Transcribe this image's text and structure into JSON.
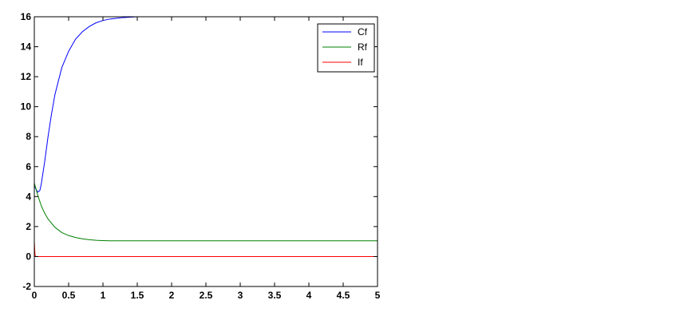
{
  "chart_data": {
    "type": "line",
    "title": "",
    "xlabel": "",
    "ylabel": "",
    "xlim": [
      0,
      5
    ],
    "ylim": [
      -2,
      16
    ],
    "xticks": [
      0,
      0.5,
      1,
      1.5,
      2,
      2.5,
      3,
      3.5,
      4,
      4.5,
      5
    ],
    "xtick_labels": [
      "0",
      "0.5",
      "1",
      "1.5",
      "2",
      "2.5",
      "3",
      "3.5",
      "4",
      "4.5",
      "5"
    ],
    "yticks": [
      -2,
      0,
      2,
      4,
      6,
      8,
      10,
      12,
      14,
      16
    ],
    "ytick_labels": [
      "-2",
      "0",
      "2",
      "4",
      "6",
      "8",
      "10",
      "12",
      "14",
      "16"
    ],
    "grid": false,
    "legend_position": "top-right",
    "series": [
      {
        "name": "Cf",
        "color": "#0000ff",
        "x": [
          0,
          0.03,
          0.05,
          0.08,
          0.1,
          0.15,
          0.2,
          0.25,
          0.3,
          0.4,
          0.5,
          0.6,
          0.7,
          0.8,
          0.9,
          1.0,
          1.1,
          1.2,
          1.3,
          1.4,
          1.5,
          2.0,
          3.0,
          4.0,
          5.0
        ],
        "y": [
          4.7,
          4.45,
          4.3,
          4.4,
          4.8,
          6.3,
          8.0,
          9.5,
          10.8,
          12.6,
          13.7,
          14.5,
          15.0,
          15.35,
          15.6,
          15.75,
          15.85,
          15.9,
          15.95,
          15.97,
          16.0,
          16.0,
          16.0,
          16.0,
          16.0
        ]
      },
      {
        "name": "Rf",
        "color": "#008000",
        "x": [
          0,
          0.05,
          0.1,
          0.15,
          0.2,
          0.3,
          0.4,
          0.5,
          0.6,
          0.7,
          0.8,
          0.9,
          1.0,
          1.1,
          1.2,
          1.5,
          2.0,
          3.0,
          4.0,
          5.0
        ],
        "y": [
          4.9,
          4.1,
          3.4,
          2.9,
          2.5,
          1.95,
          1.6,
          1.4,
          1.27,
          1.18,
          1.12,
          1.08,
          1.06,
          1.05,
          1.05,
          1.05,
          1.05,
          1.05,
          1.05,
          1.05
        ]
      },
      {
        "name": "If",
        "color": "#ff0000",
        "x": [
          0,
          0.01,
          0.02,
          0.5,
          1.0,
          2.0,
          3.0,
          4.0,
          5.0
        ],
        "y": [
          1.0,
          0.1,
          0.0,
          0.0,
          0.0,
          0.0,
          0.0,
          0.0,
          0.0
        ]
      }
    ]
  }
}
